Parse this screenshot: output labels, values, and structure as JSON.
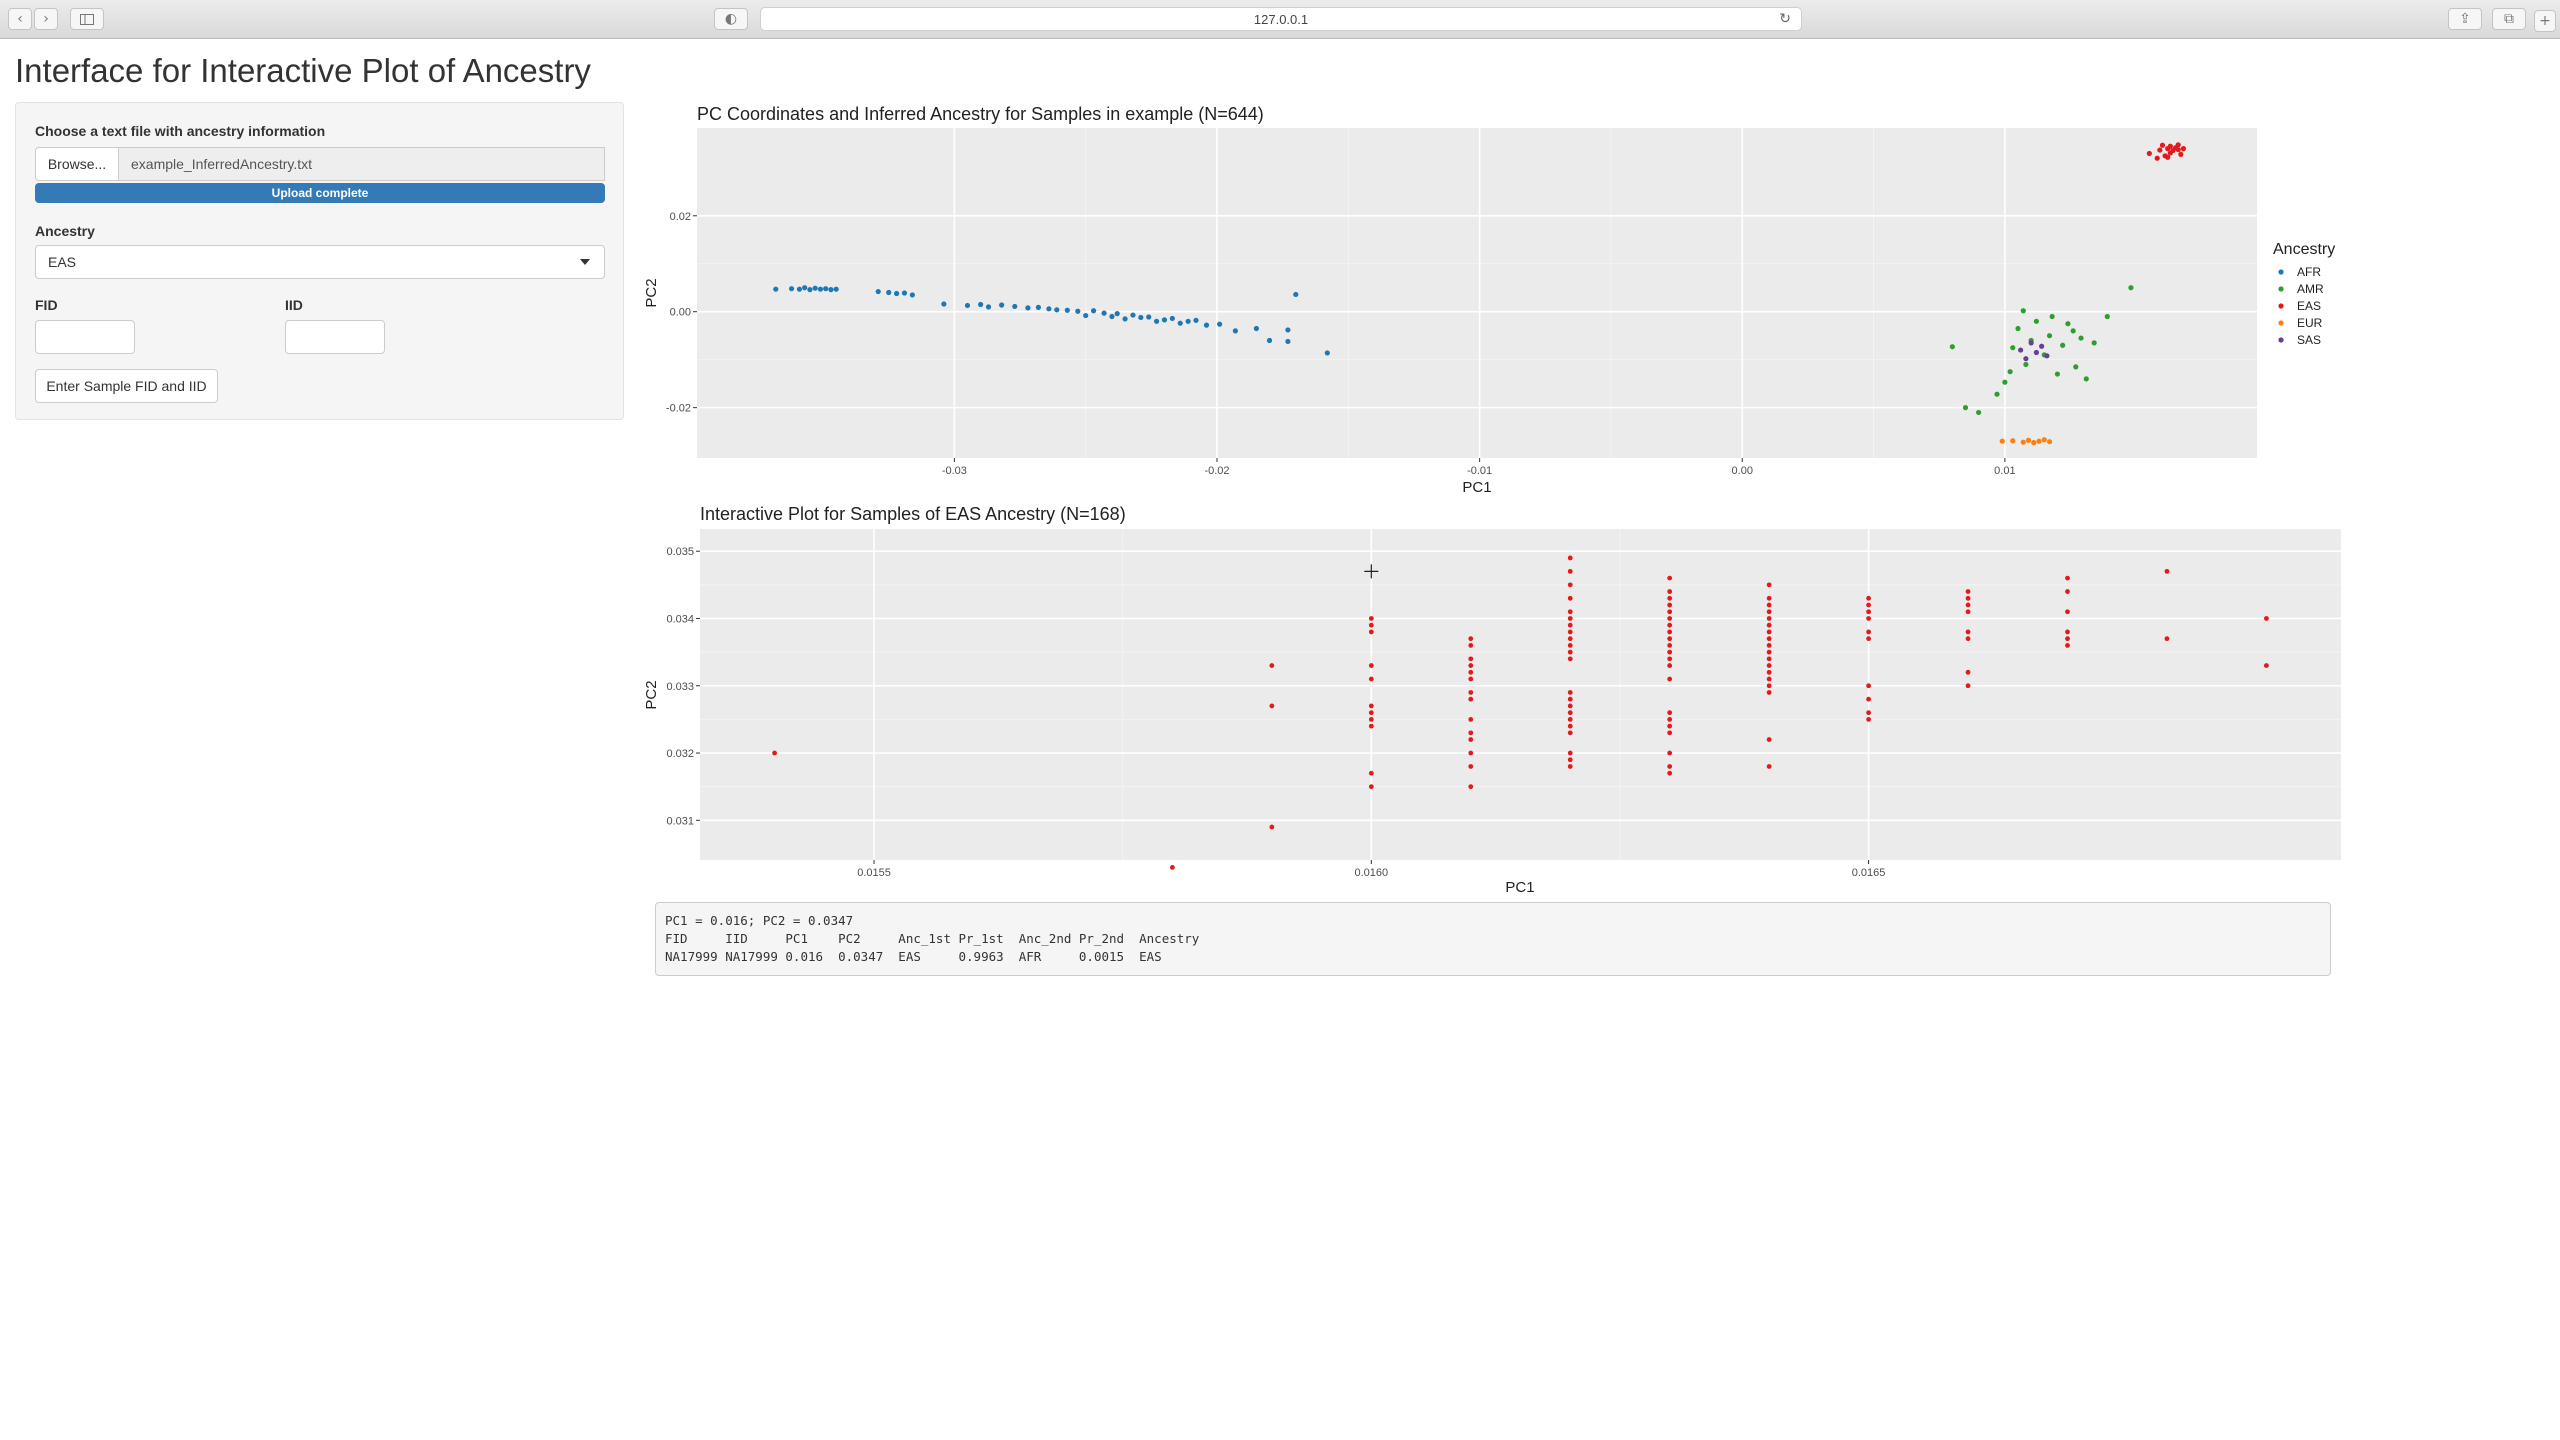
{
  "browser": {
    "url": "127.0.0.1",
    "reload_icon": "reload-icon",
    "icons": [
      "back-icon",
      "forward-icon",
      "sidebar-icon",
      "shield-icon",
      "share-icon",
      "tabs-icon",
      "new-tab-icon"
    ]
  },
  "page": {
    "title": "Interface for Interactive Plot of Ancestry"
  },
  "sidebar": {
    "file_label": "Choose a text file with ancestry information",
    "browse_label": "Browse...",
    "file_name": "example_InferredAncestry.txt",
    "upload_status": "Upload complete",
    "upload_progress": 1.0,
    "ancestry_label": "Ancestry",
    "ancestry_selected": "EAS",
    "fid_label": "FID",
    "iid_label": "IID",
    "fid_value": "",
    "iid_value": "",
    "submit_label": "Enter Sample FID and IID"
  },
  "colors": {
    "AFR": "#1f77b4",
    "AMR": "#2ca02c",
    "EAS": "#e31a1c",
    "EUR": "#ff7f0e",
    "SAS": "#6a3d9a",
    "panel": "#ebebeb",
    "primary": "#337ab7"
  },
  "chart_data": [
    {
      "type": "scatter",
      "title": "PC Coordinates and Inferred Ancestry for Samples in example (N=644)",
      "xlabel": "PC1",
      "ylabel": "PC2",
      "xlim": [
        -0.0398,
        0.0196
      ],
      "ylim": [
        -0.0305,
        0.0383
      ],
      "xticks": [
        -0.03,
        -0.02,
        -0.01,
        0.0,
        0.01
      ],
      "xtick_labels": [
        "-0.03",
        "-0.02",
        "-0.01",
        "0.00",
        "0.01"
      ],
      "yticks": [
        -0.02,
        0.0,
        0.02
      ],
      "ytick_labels": [
        "-0.02",
        "0.00",
        "0.02"
      ],
      "grid": true,
      "legend_title": "Ancestry",
      "legend_position": "right",
      "series": [
        {
          "name": "AFR",
          "points": [
            [
              -0.0368,
              0.0047
            ],
            [
              -0.0362,
              0.0048
            ],
            [
              -0.0359,
              0.0047
            ],
            [
              -0.0357,
              0.005
            ],
            [
              -0.0355,
              0.0046
            ],
            [
              -0.0353,
              0.0049
            ],
            [
              -0.0351,
              0.0047
            ],
            [
              -0.0349,
              0.0048
            ],
            [
              -0.0347,
              0.0046
            ],
            [
              -0.0345,
              0.0047
            ],
            [
              -0.0329,
              0.0042
            ],
            [
              -0.0325,
              0.004
            ],
            [
              -0.0322,
              0.0038
            ],
            [
              -0.0319,
              0.0039
            ],
            [
              -0.0316,
              0.0035
            ],
            [
              -0.0304,
              0.0016
            ],
            [
              -0.0295,
              0.0013
            ],
            [
              -0.029,
              0.0015
            ],
            [
              -0.0287,
              0.001
            ],
            [
              -0.0282,
              0.0014
            ],
            [
              -0.0277,
              0.0011
            ],
            [
              -0.0272,
              0.0008
            ],
            [
              -0.0268,
              0.0009
            ],
            [
              -0.0264,
              0.0006
            ],
            [
              -0.0261,
              0.0004
            ],
            [
              -0.0257,
              0.0003
            ],
            [
              -0.0253,
              0.0001
            ],
            [
              -0.025,
              -0.0008
            ],
            [
              -0.0247,
              0.0002
            ],
            [
              -0.0243,
              -0.0003
            ],
            [
              -0.024,
              -0.001
            ],
            [
              -0.0238,
              -0.0004
            ],
            [
              -0.0235,
              -0.0015
            ],
            [
              -0.0232,
              -0.0007
            ],
            [
              -0.0229,
              -0.0012
            ],
            [
              -0.0226,
              -0.0011
            ],
            [
              -0.0223,
              -0.002
            ],
            [
              -0.022,
              -0.0017
            ],
            [
              -0.0217,
              -0.0014
            ],
            [
              -0.0214,
              -0.0024
            ],
            [
              -0.0211,
              -0.002
            ],
            [
              -0.0208,
              -0.0018
            ],
            [
              -0.0204,
              -0.0028
            ],
            [
              -0.0199,
              -0.0026
            ],
            [
              -0.0193,
              -0.004
            ],
            [
              -0.0185,
              -0.0035
            ],
            [
              -0.018,
              -0.006
            ],
            [
              -0.0173,
              -0.0038
            ],
            [
              -0.0173,
              -0.0062
            ],
            [
              -0.017,
              0.0036
            ],
            [
              -0.0158,
              -0.0086
            ]
          ]
        },
        {
          "name": "AMR",
          "points": [
            [
              0.008,
              -0.0073
            ],
            [
              0.0085,
              -0.02
            ],
            [
              0.009,
              -0.021
            ],
            [
              0.0097,
              -0.0172
            ],
            [
              0.01,
              -0.0147
            ],
            [
              0.0102,
              -0.0125
            ],
            [
              0.0103,
              -0.0075
            ],
            [
              0.0105,
              -0.0035
            ],
            [
              0.0107,
              0.0002
            ],
            [
              0.0108,
              -0.011
            ],
            [
              0.011,
              -0.006
            ],
            [
              0.0112,
              -0.002
            ],
            [
              0.0115,
              -0.009
            ],
            [
              0.0117,
              -0.005
            ],
            [
              0.0118,
              -0.001
            ],
            [
              0.012,
              -0.013
            ],
            [
              0.0122,
              -0.007
            ],
            [
              0.0124,
              -0.0025
            ],
            [
              0.0126,
              -0.004
            ],
            [
              0.0127,
              -0.0115
            ],
            [
              0.0129,
              -0.0055
            ],
            [
              0.0131,
              -0.014
            ],
            [
              0.0134,
              -0.0065
            ],
            [
              0.0139,
              -0.001
            ],
            [
              0.0148,
              0.005
            ]
          ]
        },
        {
          "name": "EAS",
          "points": [
            [
              0.0155,
              0.033
            ],
            [
              0.0159,
              0.0337
            ],
            [
              0.016,
              0.0347
            ],
            [
              0.0161,
              0.0325
            ],
            [
              0.0162,
              0.034
            ],
            [
              0.0163,
              0.0331
            ],
            [
              0.0164,
              0.0336
            ],
            [
              0.0165,
              0.0342
            ],
            [
              0.0166,
              0.0348
            ],
            [
              0.0167,
              0.0328
            ],
            [
              0.0158,
              0.032
            ],
            [
              0.0163,
              0.0345
            ],
            [
              0.0166,
              0.0338
            ],
            [
              0.0168,
              0.034
            ],
            [
              0.0162,
              0.0322
            ]
          ]
        },
        {
          "name": "EUR",
          "points": [
            [
              0.0099,
              -0.027
            ],
            [
              0.0103,
              -0.0269
            ],
            [
              0.0107,
              -0.0272
            ],
            [
              0.0109,
              -0.0268
            ],
            [
              0.0111,
              -0.0273
            ],
            [
              0.0113,
              -0.027
            ],
            [
              0.0115,
              -0.0267
            ],
            [
              0.0117,
              -0.0271
            ]
          ]
        },
        {
          "name": "SAS",
          "points": [
            [
              0.0106,
              -0.008
            ],
            [
              0.0108,
              -0.0098
            ],
            [
              0.011,
              -0.0065
            ],
            [
              0.0112,
              -0.0085
            ],
            [
              0.0114,
              -0.0072
            ],
            [
              0.0116,
              -0.0092
            ]
          ]
        }
      ]
    },
    {
      "type": "scatter",
      "title": "Interactive Plot for Samples of EAS Ancestry (N=168)",
      "xlabel": "PC1",
      "ylabel": "PC2",
      "xlim": [
        0.015325,
        0.016975
      ],
      "ylim": [
        0.03041,
        0.03533
      ],
      "xticks": [
        0.0155,
        0.016,
        0.0165
      ],
      "xtick_labels": [
        "0.0155",
        "0.0160",
        "0.0165"
      ],
      "yticks": [
        0.031,
        0.032,
        0.033,
        0.034,
        0.035
      ],
      "ytick_labels": [
        "0.031",
        "0.032",
        "0.033",
        "0.034",
        "0.035"
      ],
      "grid": true,
      "color": "#e31a1c",
      "cursor": {
        "x": 0.016,
        "y": 0.0347
      },
      "points": [
        [
          0.0154,
          0.032
        ],
        [
          0.0158,
          0.0303
        ],
        [
          0.0159,
          0.0333
        ],
        [
          0.0159,
          0.0327
        ],
        [
          0.0159,
          0.0309
        ],
        [
          0.016,
          0.034
        ],
        [
          0.016,
          0.0339
        ],
        [
          0.016,
          0.0338
        ],
        [
          0.016,
          0.0333
        ],
        [
          0.016,
          0.0331
        ],
        [
          0.016,
          0.0327
        ],
        [
          0.016,
          0.0326
        ],
        [
          0.016,
          0.0325
        ],
        [
          0.016,
          0.0324
        ],
        [
          0.016,
          0.0317
        ],
        [
          0.016,
          0.0315
        ],
        [
          0.0161,
          0.0337
        ],
        [
          0.0161,
          0.0336
        ],
        [
          0.0161,
          0.0334
        ],
        [
          0.0161,
          0.0333
        ],
        [
          0.0161,
          0.0332
        ],
        [
          0.0161,
          0.0331
        ],
        [
          0.0161,
          0.0329
        ],
        [
          0.0161,
          0.0328
        ],
        [
          0.0161,
          0.0325
        ],
        [
          0.0161,
          0.0323
        ],
        [
          0.0161,
          0.0322
        ],
        [
          0.0161,
          0.032
        ],
        [
          0.0161,
          0.0318
        ],
        [
          0.0161,
          0.0315
        ],
        [
          0.0162,
          0.0349
        ],
        [
          0.0162,
          0.0347
        ],
        [
          0.0162,
          0.0345
        ],
        [
          0.0162,
          0.0343
        ],
        [
          0.0162,
          0.0341
        ],
        [
          0.0162,
          0.034
        ],
        [
          0.0162,
          0.0339
        ],
        [
          0.0162,
          0.0338
        ],
        [
          0.0162,
          0.0337
        ],
        [
          0.0162,
          0.0336
        ],
        [
          0.0162,
          0.0335
        ],
        [
          0.0162,
          0.0334
        ],
        [
          0.0162,
          0.0329
        ],
        [
          0.0162,
          0.0328
        ],
        [
          0.0162,
          0.0327
        ],
        [
          0.0162,
          0.0326
        ],
        [
          0.0162,
          0.0325
        ],
        [
          0.0162,
          0.0324
        ],
        [
          0.0162,
          0.0323
        ],
        [
          0.0162,
          0.032
        ],
        [
          0.0162,
          0.0319
        ],
        [
          0.0162,
          0.0318
        ],
        [
          0.0163,
          0.0346
        ],
        [
          0.0163,
          0.0344
        ],
        [
          0.0163,
          0.0343
        ],
        [
          0.0163,
          0.0342
        ],
        [
          0.0163,
          0.0341
        ],
        [
          0.0163,
          0.034
        ],
        [
          0.0163,
          0.0339
        ],
        [
          0.0163,
          0.0338
        ],
        [
          0.0163,
          0.0337
        ],
        [
          0.0163,
          0.0336
        ],
        [
          0.0163,
          0.0335
        ],
        [
          0.0163,
          0.0334
        ],
        [
          0.0163,
          0.0333
        ],
        [
          0.0163,
          0.0331
        ],
        [
          0.0163,
          0.0326
        ],
        [
          0.0163,
          0.0325
        ],
        [
          0.0163,
          0.0324
        ],
        [
          0.0163,
          0.0323
        ],
        [
          0.0163,
          0.032
        ],
        [
          0.0163,
          0.0318
        ],
        [
          0.0163,
          0.0317
        ],
        [
          0.0164,
          0.0345
        ],
        [
          0.0164,
          0.0343
        ],
        [
          0.0164,
          0.0342
        ],
        [
          0.0164,
          0.0341
        ],
        [
          0.0164,
          0.034
        ],
        [
          0.0164,
          0.0339
        ],
        [
          0.0164,
          0.0338
        ],
        [
          0.0164,
          0.0337
        ],
        [
          0.0164,
          0.0336
        ],
        [
          0.0164,
          0.0335
        ],
        [
          0.0164,
          0.0334
        ],
        [
          0.0164,
          0.0333
        ],
        [
          0.0164,
          0.0332
        ],
        [
          0.0164,
          0.0331
        ],
        [
          0.0164,
          0.033
        ],
        [
          0.0164,
          0.0329
        ],
        [
          0.0164,
          0.0322
        ],
        [
          0.0164,
          0.0318
        ],
        [
          0.0165,
          0.0343
        ],
        [
          0.0165,
          0.0342
        ],
        [
          0.0165,
          0.0341
        ],
        [
          0.0165,
          0.034
        ],
        [
          0.0165,
          0.0338
        ],
        [
          0.0165,
          0.0337
        ],
        [
          0.0165,
          0.033
        ],
        [
          0.0165,
          0.0328
        ],
        [
          0.0165,
          0.0326
        ],
        [
          0.0165,
          0.0325
        ],
        [
          0.0166,
          0.0344
        ],
        [
          0.0166,
          0.0343
        ],
        [
          0.0166,
          0.0342
        ],
        [
          0.0166,
          0.0341
        ],
        [
          0.0166,
          0.0338
        ],
        [
          0.0166,
          0.0337
        ],
        [
          0.0166,
          0.0332
        ],
        [
          0.0166,
          0.033
        ],
        [
          0.0167,
          0.0346
        ],
        [
          0.0167,
          0.0344
        ],
        [
          0.0167,
          0.0341
        ],
        [
          0.0167,
          0.0338
        ],
        [
          0.0167,
          0.0337
        ],
        [
          0.0167,
          0.0336
        ],
        [
          0.0168,
          0.0347
        ],
        [
          0.0168,
          0.0337
        ],
        [
          0.0169,
          0.034
        ],
        [
          0.0169,
          0.0333
        ]
      ]
    }
  ],
  "output": {
    "lines": [
      "PC1 = 0.016; PC2 = 0.0347",
      "FID     IID     PC1    PC2     Anc_1st Pr_1st  Anc_2nd Pr_2nd  Ancestry",
      "NA17999 NA17999 0.016  0.0347  EAS     0.9963  AFR     0.0015  EAS"
    ]
  }
}
